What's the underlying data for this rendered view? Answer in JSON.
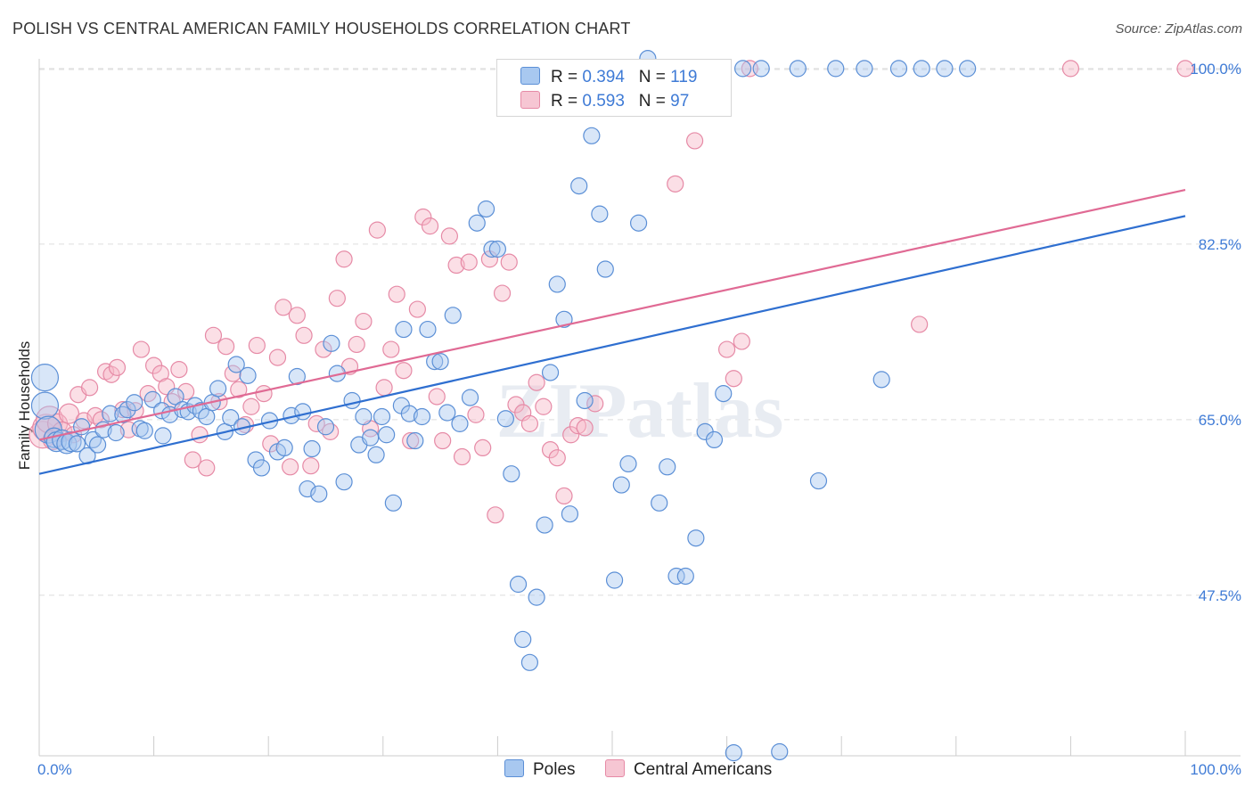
{
  "title": "POLISH VS CENTRAL AMERICAN FAMILY HOUSEHOLDS CORRELATION CHART",
  "source": "Source: ZipAtlas.com",
  "watermark": "ZIPatlas",
  "colors": {
    "poles_fill": "#a8c8f0",
    "poles_stroke": "#5b8fd6",
    "poles_line": "#2f6fd0",
    "central_fill": "#f6b8c8",
    "central_stroke": "#e68aa6",
    "central_line": "#e06a94",
    "tick_text": "#3f7bd6",
    "grid": "#dddddd"
  },
  "legend": {
    "r_label": "R =",
    "n_label": "N =",
    "rows": [
      {
        "r": "0.394",
        "n": "119",
        "series": "Poles"
      },
      {
        "r": "0.593",
        "n": "97",
        "series": "Central Americans"
      }
    ]
  },
  "bottom_legend": [
    "Poles",
    "Central Americans"
  ],
  "chart_data": {
    "type": "scatter",
    "title": "POLISH VS CENTRAL AMERICAN FAMILY HOUSEHOLDS CORRELATION CHART",
    "xlabel": "",
    "ylabel": "Family Households",
    "xlim": [
      0,
      100
    ],
    "ylim": [
      31.5,
      101.5
    ],
    "x_tick_labels": [
      "0.0%",
      "100.0%"
    ],
    "y_ticks": [
      47.5,
      65.0,
      82.5,
      100.0
    ],
    "y_tick_labels": [
      "47.5%",
      "65.0%",
      "82.5%",
      "100.0%"
    ],
    "grid": true,
    "legend_position": "top-center",
    "series": [
      {
        "name": "Poles",
        "r": 0.394,
        "n": 119,
        "trend": {
          "x": [
            0,
            100
          ],
          "y": [
            59.6,
            85.3
          ]
        },
        "points": [
          [
            0.5,
            69.2
          ],
          [
            0.5,
            66.4
          ],
          [
            0.8,
            64.0
          ],
          [
            1.3,
            63.2
          ],
          [
            1.5,
            62.8
          ],
          [
            2.0,
            63.0
          ],
          [
            2.4,
            62.6
          ],
          [
            2.8,
            62.8
          ],
          [
            3.3,
            62.6
          ],
          [
            3.7,
            64.3
          ],
          [
            4.2,
            61.4
          ],
          [
            4.7,
            63.0
          ],
          [
            5.1,
            62.5
          ],
          [
            5.6,
            64.0
          ],
          [
            6.2,
            65.6
          ],
          [
            6.7,
            63.7
          ],
          [
            7.3,
            65.5
          ],
          [
            7.7,
            66.0
          ],
          [
            8.3,
            66.7
          ],
          [
            8.8,
            64.1
          ],
          [
            9.2,
            63.9
          ],
          [
            9.9,
            67.0
          ],
          [
            10.7,
            65.9
          ],
          [
            10.8,
            63.4
          ],
          [
            11.4,
            65.5
          ],
          [
            11.9,
            67.3
          ],
          [
            12.5,
            66.0
          ],
          [
            13.0,
            65.8
          ],
          [
            13.6,
            66.4
          ],
          [
            14.1,
            65.9
          ],
          [
            14.6,
            65.3
          ],
          [
            15.1,
            66.7
          ],
          [
            15.6,
            68.1
          ],
          [
            16.2,
            63.8
          ],
          [
            16.7,
            65.2
          ],
          [
            17.2,
            70.5
          ],
          [
            17.7,
            64.3
          ],
          [
            18.2,
            69.4
          ],
          [
            18.9,
            61.0
          ],
          [
            19.4,
            60.2
          ],
          [
            20.1,
            64.9
          ],
          [
            20.8,
            61.8
          ],
          [
            21.4,
            62.2
          ],
          [
            22.0,
            65.4
          ],
          [
            22.5,
            69.3
          ],
          [
            23.0,
            65.8
          ],
          [
            23.4,
            58.1
          ],
          [
            23.8,
            62.1
          ],
          [
            24.4,
            57.6
          ],
          [
            25.0,
            64.3
          ],
          [
            25.5,
            72.6
          ],
          [
            26.0,
            69.6
          ],
          [
            26.6,
            58.8
          ],
          [
            27.3,
            66.9
          ],
          [
            27.9,
            62.5
          ],
          [
            28.3,
            65.3
          ],
          [
            28.9,
            63.2
          ],
          [
            29.4,
            61.5
          ],
          [
            29.9,
            65.3
          ],
          [
            30.3,
            63.5
          ],
          [
            30.9,
            56.7
          ],
          [
            31.6,
            66.4
          ],
          [
            31.8,
            74.0
          ],
          [
            32.3,
            65.6
          ],
          [
            32.8,
            62.9
          ],
          [
            33.4,
            65.3
          ],
          [
            33.9,
            74.0
          ],
          [
            34.5,
            70.8
          ],
          [
            35.0,
            70.8
          ],
          [
            35.6,
            65.7
          ],
          [
            36.1,
            75.4
          ],
          [
            36.7,
            64.6
          ],
          [
            37.6,
            67.2
          ],
          [
            38.2,
            84.6
          ],
          [
            39.0,
            86.0
          ],
          [
            39.5,
            82.0
          ],
          [
            40.0,
            82.0
          ],
          [
            40.7,
            65.1
          ],
          [
            41.2,
            59.6
          ],
          [
            41.8,
            48.6
          ],
          [
            42.2,
            43.1
          ],
          [
            42.8,
            40.8
          ],
          [
            43.4,
            47.3
          ],
          [
            44.1,
            54.5
          ],
          [
            44.6,
            69.7
          ],
          [
            45.2,
            78.5
          ],
          [
            45.8,
            75.0
          ],
          [
            46.3,
            55.6
          ],
          [
            47.1,
            88.3
          ],
          [
            47.6,
            66.9
          ],
          [
            48.2,
            93.3
          ],
          [
            48.9,
            85.5
          ],
          [
            49.4,
            80.0
          ],
          [
            50.2,
            49.0
          ],
          [
            50.8,
            58.5
          ],
          [
            51.4,
            60.6
          ],
          [
            52.3,
            84.6
          ],
          [
            53.1,
            101.0
          ],
          [
            54.1,
            56.7
          ],
          [
            54.8,
            60.3
          ],
          [
            55.6,
            49.4
          ],
          [
            56.4,
            49.4
          ],
          [
            57.3,
            53.2
          ],
          [
            58.1,
            63.8
          ],
          [
            58.9,
            63.0
          ],
          [
            59.7,
            67.6
          ],
          [
            60.6,
            31.8
          ],
          [
            61.4,
            100.0
          ],
          [
            63.0,
            100.0
          ],
          [
            64.6,
            31.9
          ],
          [
            66.2,
            100.0
          ],
          [
            68.0,
            58.9
          ],
          [
            69.5,
            100.0
          ],
          [
            72.0,
            100.0
          ],
          [
            73.5,
            69.0
          ],
          [
            75.0,
            100.0
          ],
          [
            77.0,
            100.0
          ],
          [
            79.0,
            100.0
          ],
          [
            81.0,
            100.0
          ]
        ]
      },
      {
        "name": "Central Americans",
        "r": 0.593,
        "n": 97,
        "trend": {
          "x": [
            0,
            100
          ],
          "y": [
            63.0,
            87.9
          ]
        },
        "points": [
          [
            0.3,
            63.5
          ],
          [
            0.6,
            64.2
          ],
          [
            0.9,
            65.0
          ],
          [
            1.2,
            63.0
          ],
          [
            1.6,
            64.6
          ],
          [
            2.0,
            63.8
          ],
          [
            2.6,
            65.6
          ],
          [
            3.0,
            63.5
          ],
          [
            3.4,
            67.5
          ],
          [
            3.9,
            64.9
          ],
          [
            4.4,
            68.2
          ],
          [
            4.9,
            65.4
          ],
          [
            5.4,
            65.0
          ],
          [
            5.8,
            69.8
          ],
          [
            6.3,
            69.5
          ],
          [
            6.8,
            70.2
          ],
          [
            7.3,
            66.0
          ],
          [
            7.8,
            64.0
          ],
          [
            8.4,
            65.9
          ],
          [
            8.9,
            72.0
          ],
          [
            9.5,
            67.6
          ],
          [
            10.0,
            70.4
          ],
          [
            10.6,
            69.6
          ],
          [
            11.1,
            68.3
          ],
          [
            11.6,
            66.8
          ],
          [
            12.2,
            70.0
          ],
          [
            12.8,
            67.8
          ],
          [
            13.4,
            61.0
          ],
          [
            14.0,
            63.5
          ],
          [
            14.6,
            60.2
          ],
          [
            15.2,
            73.4
          ],
          [
            15.7,
            66.8
          ],
          [
            16.3,
            72.3
          ],
          [
            16.9,
            69.6
          ],
          [
            17.4,
            68.0
          ],
          [
            18.0,
            64.5
          ],
          [
            18.5,
            66.3
          ],
          [
            19.0,
            72.4
          ],
          [
            19.6,
            67.6
          ],
          [
            20.2,
            62.6
          ],
          [
            20.8,
            71.2
          ],
          [
            21.3,
            76.2
          ],
          [
            21.9,
            60.3
          ],
          [
            22.5,
            75.4
          ],
          [
            23.1,
            73.4
          ],
          [
            23.7,
            60.4
          ],
          [
            24.2,
            64.6
          ],
          [
            24.8,
            72.0
          ],
          [
            25.4,
            63.8
          ],
          [
            26.0,
            77.1
          ],
          [
            26.6,
            81.0
          ],
          [
            27.1,
            70.3
          ],
          [
            27.7,
            72.5
          ],
          [
            28.3,
            74.8
          ],
          [
            28.9,
            64.1
          ],
          [
            29.5,
            83.9
          ],
          [
            30.1,
            68.2
          ],
          [
            30.7,
            72.0
          ],
          [
            31.2,
            77.5
          ],
          [
            31.8,
            69.9
          ],
          [
            32.4,
            62.9
          ],
          [
            33.0,
            76.0
          ],
          [
            33.5,
            85.2
          ],
          [
            34.1,
            84.3
          ],
          [
            34.7,
            67.3
          ],
          [
            35.2,
            62.9
          ],
          [
            35.8,
            83.3
          ],
          [
            36.4,
            80.4
          ],
          [
            36.9,
            61.3
          ],
          [
            37.5,
            80.7
          ],
          [
            38.1,
            65.5
          ],
          [
            38.7,
            62.2
          ],
          [
            39.3,
            81.0
          ],
          [
            39.8,
            55.5
          ],
          [
            40.4,
            77.6
          ],
          [
            41.0,
            80.7
          ],
          [
            41.6,
            66.5
          ],
          [
            42.2,
            65.7
          ],
          [
            42.8,
            64.6
          ],
          [
            43.4,
            68.7
          ],
          [
            44.0,
            66.3
          ],
          [
            44.6,
            62.0
          ],
          [
            45.2,
            61.2
          ],
          [
            45.8,
            57.4
          ],
          [
            46.4,
            63.5
          ],
          [
            47.0,
            64.4
          ],
          [
            47.6,
            64.2
          ],
          [
            48.5,
            66.6
          ],
          [
            55.5,
            88.5
          ],
          [
            57.2,
            92.8
          ],
          [
            60.0,
            72.0
          ],
          [
            60.6,
            69.1
          ],
          [
            61.3,
            72.8
          ],
          [
            62.0,
            100.0
          ],
          [
            76.8,
            74.5
          ],
          [
            90.0,
            100.0
          ],
          [
            100.0,
            100.0
          ]
        ]
      }
    ]
  }
}
